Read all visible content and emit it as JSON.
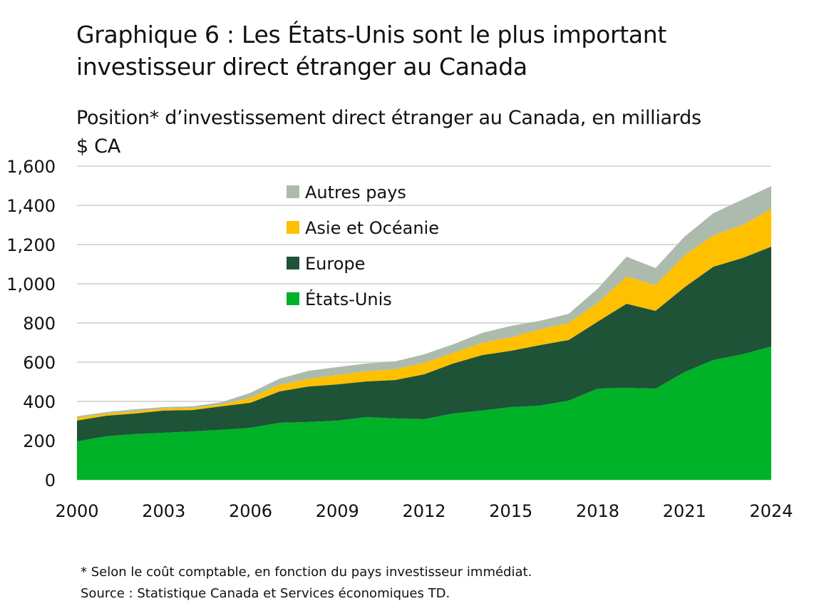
{
  "title": "Graphique 6 : Les États-Unis sont le plus important investisseur direct étranger au Canada",
  "subtitle": "Position* d’investissement direct étranger au Canada, en milliards $ CA",
  "footnote": "* Selon le coût comptable, en fonction du pays investisseur immédiat.",
  "source": "Source : Statistique Canada et Services économiques TD.",
  "chart_data": {
    "type": "area",
    "stacked": true,
    "title": "Graphique 6 : Les États-Unis sont le plus important investisseur direct étranger au Canada",
    "ylabel": "Position* d’investissement direct étranger au Canada, en milliards $ CA",
    "xlabel": "",
    "ylim": [
      0,
      1600
    ],
    "yticks": [
      "0",
      "200",
      "400",
      "600",
      "800",
      "1,000",
      "1,200",
      "1,400",
      "1,600"
    ],
    "ytick_values": [
      0,
      200,
      400,
      600,
      800,
      1000,
      1200,
      1400,
      1600
    ],
    "xticks": [
      "2000",
      "2003",
      "2006",
      "2009",
      "2012",
      "2015",
      "2018",
      "2021",
      "2024"
    ],
    "grid": true,
    "legend": "top-center",
    "x": [
      2000,
      2001,
      2002,
      2003,
      2004,
      2005,
      2006,
      2007,
      2008,
      2009,
      2010,
      2011,
      2012,
      2013,
      2014,
      2015,
      2016,
      2017,
      2018,
      2019,
      2020,
      2021,
      2022,
      2023,
      2024
    ],
    "series": [
      {
        "name": "États-Unis",
        "color": "#00b227",
        "values": [
          196,
          222,
          233,
          240,
          247,
          255,
          265,
          291,
          295,
          302,
          320,
          313,
          309,
          338,
          353,
          371,
          378,
          404,
          465,
          469,
          465,
          549,
          611,
          640,
          680
        ]
      },
      {
        "name": "Europe",
        "color": "#1e5338",
        "values": [
          106,
          105,
          105,
          113,
          109,
          120,
          128,
          160,
          181,
          185,
          182,
          196,
          229,
          255,
          283,
          287,
          309,
          309,
          342,
          429,
          397,
          433,
          476,
          491,
          509
        ]
      },
      {
        "name": "Asie et Océanie",
        "color": "#ffc000",
        "values": [
          14,
          11,
          11,
          11,
          11,
          10,
          25,
          33,
          37,
          48,
          51,
          55,
          58,
          54,
          62,
          69,
          80,
          87,
          95,
          138,
          131,
          163,
          160,
          167,
          193
        ]
      },
      {
        "name": "Autres pays",
        "color": "#adbbad",
        "values": [
          8,
          7,
          11,
          7,
          8,
          11,
          26,
          32,
          43,
          40,
          40,
          40,
          44,
          44,
          51,
          58,
          44,
          47,
          73,
          102,
          87,
          95,
          113,
          131,
          116
        ]
      }
    ]
  }
}
